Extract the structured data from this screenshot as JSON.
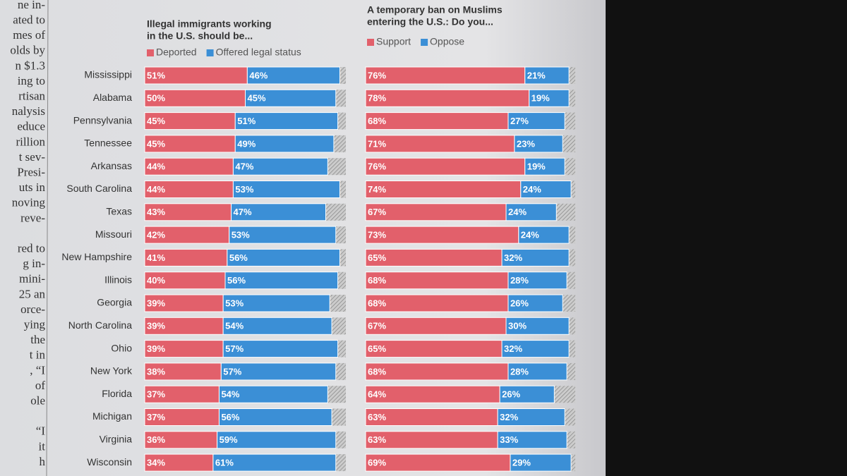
{
  "sidebar": {
    "blocks": [
      [
        "ne in-",
        "ated to",
        "mes of",
        "olds by",
        "n $1.3",
        "ing to",
        "rtisan",
        "nalysis",
        "educe",
        "rillion",
        "t sev-",
        "Presi-",
        "uts in",
        "noving",
        "reve-"
      ],
      [
        "red to",
        "g in-",
        "mini-",
        "25 an",
        "orce-",
        "ying",
        "the",
        "t in",
        ", “I",
        "of",
        "ole"
      ],
      [
        "“I",
        "it",
        "h"
      ]
    ]
  },
  "chart_data": [
    {
      "type": "bar",
      "orientation": "horizontal",
      "stacked": true,
      "title": [
        "Illegal immigrants working",
        "in the U.S. should be..."
      ],
      "categories": [
        "Mississippi",
        "Alabama",
        "Pennsylvania",
        "Tennessee",
        "Arkansas",
        "South Carolina",
        "Texas",
        "Missouri",
        "New Hampshire",
        "Illinois",
        "Georgia",
        "North Carolina",
        "Ohio",
        "New York",
        "Florida",
        "Michigan",
        "Virginia",
        "Wisconsin"
      ],
      "xlim": [
        0,
        100
      ],
      "series": [
        {
          "name": "Deported",
          "color": "#e2606b",
          "values": [
            51,
            50,
            45,
            45,
            44,
            44,
            43,
            42,
            41,
            40,
            39,
            39,
            39,
            38,
            37,
            37,
            36,
            34
          ],
          "value_labels": [
            "51%",
            "50%",
            "45%",
            "45%",
            "44%",
            "44%",
            "43%",
            "42%",
            "41%",
            "40%",
            "39%",
            "39%",
            "39%",
            "38%",
            "37%",
            "37%",
            "36%",
            "34%"
          ]
        },
        {
          "name": "Offered legal status",
          "color": "#3b8fd6",
          "values": [
            46,
            45,
            51,
            49,
            47,
            53,
            47,
            53,
            56,
            56,
            53,
            54,
            57,
            57,
            54,
            56,
            59,
            61
          ],
          "value_labels": [
            "46%",
            "45%",
            "51%",
            "49%",
            "47%",
            "53%",
            "47%",
            "53%",
            "56%",
            "56%",
            "53%",
            "54%",
            "57%",
            "57%",
            "54%",
            "56%",
            "59%",
            "61%"
          ]
        }
      ]
    },
    {
      "type": "bar",
      "orientation": "horizontal",
      "stacked": true,
      "title": [
        "A temporary ban on Muslims",
        "entering the U.S.: Do you..."
      ],
      "xlim": [
        0,
        100
      ],
      "series": [
        {
          "name": "Support",
          "color": "#e2606b",
          "values": [
            76,
            78,
            68,
            71,
            76,
            74,
            67,
            73,
            65,
            68,
            68,
            67,
            65,
            68,
            64,
            63,
            63,
            69
          ],
          "value_labels": [
            "76%",
            "78%",
            "68%",
            "71%",
            "76%",
            "74%",
            "67%",
            "73%",
            "65%",
            "68%",
            "68%",
            "67%",
            "65%",
            "68%",
            "64%",
            "63%",
            "63%",
            "69%"
          ]
        },
        {
          "name": "Oppose",
          "color": "#3b8fd6",
          "values": [
            21,
            19,
            27,
            23,
            19,
            24,
            24,
            24,
            32,
            28,
            26,
            30,
            32,
            28,
            26,
            32,
            33,
            29
          ],
          "value_labels": [
            "21%",
            "19%",
            "27%",
            "23%",
            "19%",
            "24%",
            "24%",
            "24%",
            "32%",
            "28%",
            "26%",
            "30%",
            "32%",
            "28%",
            "26%",
            "32%",
            "33%",
            "29%"
          ]
        }
      ]
    }
  ]
}
